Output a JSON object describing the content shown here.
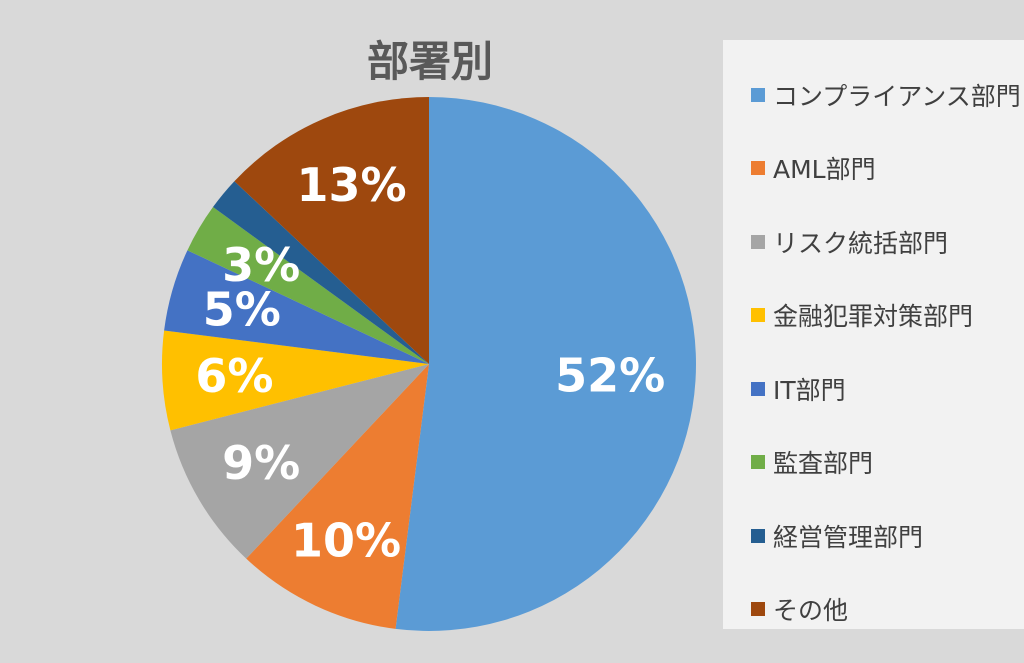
{
  "chart_data": {
    "type": "pie",
    "title": "部署別",
    "legend_position": "right",
    "slices": [
      {
        "name": "コンプライアンス部門",
        "value": 52,
        "label": "52%",
        "color": "#5b9bd5"
      },
      {
        "name": "AML部門",
        "value": 10,
        "label": "10%",
        "color": "#ed7d31"
      },
      {
        "name": "リスク統括部門",
        "value": 9,
        "label": "9%",
        "color": "#a5a5a5"
      },
      {
        "name": "金融犯罪対策部門",
        "value": 6,
        "label": "6%",
        "color": "#ffc000"
      },
      {
        "name": "IT部門",
        "value": 5,
        "label": "5%",
        "color": "#4472c4"
      },
      {
        "name": "監査部門",
        "value": 3,
        "label": "3%",
        "color": "#70ad47"
      },
      {
        "name": "経営管理部門",
        "value": 2,
        "label": "",
        "color": "#255e91"
      },
      {
        "name": "その他",
        "value": 13,
        "label": "13%",
        "color": "#9e480e"
      }
    ]
  }
}
